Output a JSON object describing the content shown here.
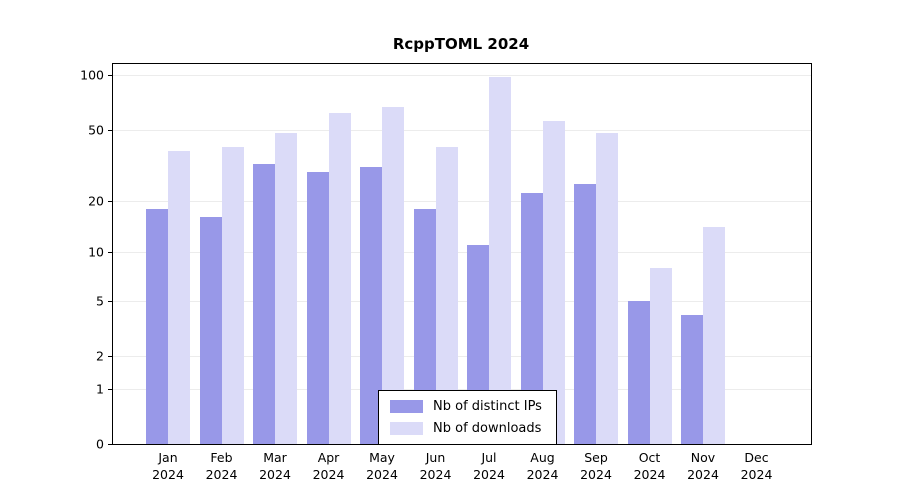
{
  "title": "RcppTOML 2024",
  "y_axis": {
    "tick_labels": [
      "0",
      "1",
      "2",
      "5",
      "10",
      "20",
      "50",
      "100"
    ]
  },
  "legend": {
    "items": [
      "Nb of distinct IPs",
      "Nb of downloads"
    ]
  },
  "colors": {
    "ips_bar": "#9898e8",
    "downloads_bar": "#dbdbf8",
    "grid": "#ececec",
    "axis": "#000000",
    "background": "#ffffff"
  },
  "chart_data": {
    "type": "bar",
    "title": "RcppTOML 2024",
    "categories": [
      "Jan 2024",
      "Feb 2024",
      "Mar 2024",
      "Apr 2024",
      "May 2024",
      "Jun 2024",
      "Jul 2024",
      "Aug 2024",
      "Sep 2024",
      "Oct 2024",
      "Nov 2024",
      "Dec 2024"
    ],
    "series": [
      {
        "name": "Nb of distinct IPs",
        "color": "#9898e8",
        "values": [
          18,
          16,
          32,
          29,
          31,
          18,
          11,
          22,
          25,
          5,
          4,
          0
        ]
      },
      {
        "name": "Nb of downloads",
        "color": "#dbdbf8",
        "values": [
          38,
          40,
          48,
          62,
          67,
          40,
          97,
          56,
          48,
          8,
          14,
          0
        ]
      }
    ],
    "yscale": "log1p",
    "yticks": [
      0,
      1,
      2,
      5,
      10,
      20,
      50,
      100
    ],
    "ylim": [
      0,
      110
    ],
    "xlabel": "",
    "ylabel": "",
    "grid": true,
    "legend_position": "bottom-center-inside"
  }
}
